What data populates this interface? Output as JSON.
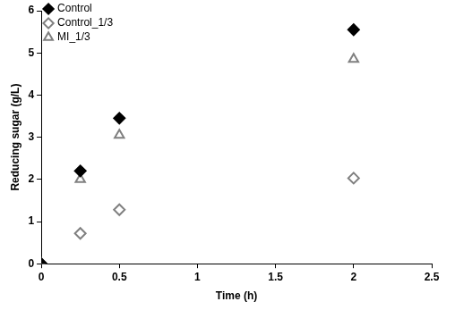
{
  "chart_data": {
    "type": "scatter",
    "x_label": "Time (h)",
    "y_label": "Reducing sugar (g/L)",
    "xlim": [
      0,
      2.5
    ],
    "xticks": [
      0,
      0.5,
      1,
      1.5,
      2,
      2.5
    ],
    "ylim": [
      0,
      6
    ],
    "yticks": [
      0,
      1,
      2,
      3,
      4,
      5,
      6
    ],
    "grid": false,
    "legend": "top-left",
    "series": [
      {
        "name": "Control",
        "color": "#000000",
        "marker": "diamond",
        "x": [
          0,
          0.25,
          0.5,
          2
        ],
        "values": [
          0,
          2.2,
          3.45,
          5.55
        ]
      },
      {
        "name": "Control_1/3",
        "color": "#808080",
        "marker": "open_diamond",
        "x": [
          0,
          0.25,
          0.5,
          2
        ],
        "values": [
          0,
          0.72,
          1.28,
          2.03
        ]
      },
      {
        "name": "MI_1/3",
        "color": "#808080",
        "marker": "open_triangle",
        "x": [
          0,
          0.25,
          0.5,
          2
        ],
        "values": [
          0,
          2.0,
          3.05,
          4.85
        ]
      }
    ]
  }
}
